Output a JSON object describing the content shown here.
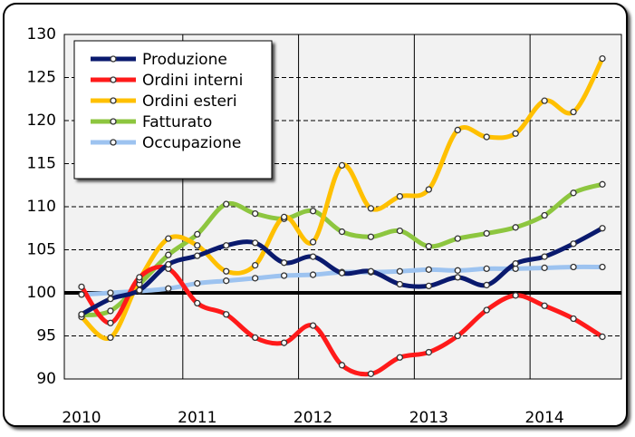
{
  "chart_data": {
    "type": "line",
    "categories": [
      "2010",
      null,
      null,
      null,
      "2011",
      null,
      null,
      null,
      "2012",
      null,
      null,
      null,
      "2013",
      null,
      null,
      null,
      "2014",
      null,
      null
    ],
    "series": [
      {
        "name": "Produzione",
        "color": "#0a1a6e",
        "values": [
          97.5,
          99.3,
          100.3,
          103.3,
          104.3,
          105.5,
          105.8,
          103.5,
          104.2,
          102.3,
          102.5,
          101,
          100.8,
          101.8,
          100.9,
          103.4,
          104.2,
          105.7,
          107.5
        ]
      },
      {
        "name": "Ordini interni",
        "color": "#ff1a1a",
        "values": [
          100.7,
          96.5,
          101.8,
          102.8,
          98.8,
          97.5,
          94.8,
          94.2,
          96.2,
          91.6,
          90.6,
          92.5,
          93.1,
          95,
          98,
          99.7,
          98.5,
          97,
          94.9
        ]
      },
      {
        "name": "Ordini esteri",
        "color": "#ffc000",
        "values": [
          97.2,
          94.8,
          101.5,
          106.3,
          105.5,
          102.5,
          103.2,
          108.8,
          105.9,
          114.8,
          109.8,
          111.2,
          112,
          118.9,
          118.1,
          118.5,
          122.3,
          121,
          127.2
        ]
      },
      {
        "name": "Fatturato",
        "color": "#8dc63f",
        "values": [
          97.4,
          97.9,
          101,
          104.4,
          106.8,
          110.3,
          109.2,
          108.6,
          109.5,
          107.1,
          106.5,
          107.2,
          105.4,
          106.3,
          106.9,
          107.6,
          109,
          111.6,
          112.6
        ]
      },
      {
        "name": "Occupazione",
        "color": "#9dc3f0",
        "values": [
          99.8,
          100,
          100.2,
          100.5,
          101.1,
          101.4,
          101.7,
          102,
          102.1,
          102.4,
          102.4,
          102.5,
          102.7,
          102.6,
          102.8,
          102.8,
          102.9,
          103,
          103
        ]
      }
    ],
    "reference_line": 100,
    "ylim": [
      90,
      130
    ],
    "yticks": [
      90,
      95,
      100,
      105,
      110,
      115,
      120,
      125,
      130
    ],
    "grid": true,
    "legend": "top-left"
  }
}
